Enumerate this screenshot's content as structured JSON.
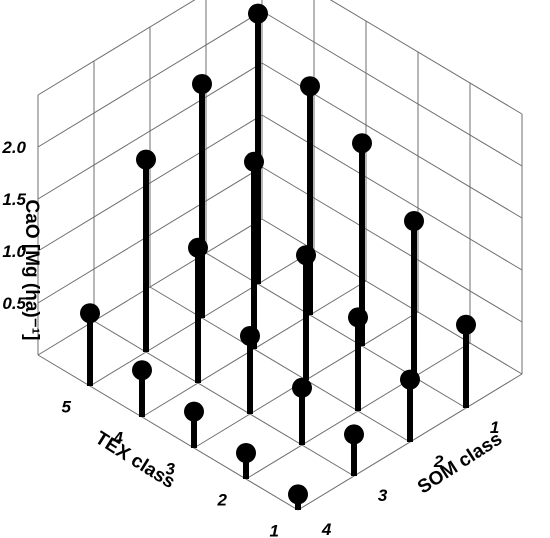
{
  "chart_data": {
    "type": "3d-stem",
    "zlabel": "CaO [Mg (ha)⁻¹]",
    "xlabel": "TEX class",
    "ylabel": "SOM class",
    "zlim": [
      0,
      2.5
    ],
    "z_ticks": [
      "0.5",
      "1.0",
      "1.5",
      "2.0"
    ],
    "x_ticks": [
      "1",
      "2",
      "3",
      "4",
      "5"
    ],
    "y_ticks": [
      "1",
      "2",
      "3",
      "4"
    ],
    "grid": true,
    "points": [
      {
        "tex": 5,
        "som": 4,
        "value": 0.7
      },
      {
        "tex": 5,
        "som": 3,
        "value": 1.85
      },
      {
        "tex": 5,
        "som": 2,
        "value": 2.25
      },
      {
        "tex": 5,
        "som": 1,
        "value": 2.6
      },
      {
        "tex": 4,
        "som": 4,
        "value": 0.45
      },
      {
        "tex": 4,
        "som": 3,
        "value": 1.3
      },
      {
        "tex": 4,
        "som": 2,
        "value": 1.8
      },
      {
        "tex": 4,
        "som": 1,
        "value": 2.2
      },
      {
        "tex": 3,
        "som": 4,
        "value": 0.35
      },
      {
        "tex": 3,
        "som": 3,
        "value": 0.75
      },
      {
        "tex": 3,
        "som": 2,
        "value": 1.2
      },
      {
        "tex": 3,
        "som": 1,
        "value": 1.95
      },
      {
        "tex": 2,
        "som": 4,
        "value": 0.25
      },
      {
        "tex": 2,
        "som": 3,
        "value": 0.55
      },
      {
        "tex": 2,
        "som": 2,
        "value": 0.9
      },
      {
        "tex": 2,
        "som": 1,
        "value": 1.5
      },
      {
        "tex": 1,
        "som": 4,
        "value": 0.15
      },
      {
        "tex": 1,
        "som": 3,
        "value": 0.4
      },
      {
        "tex": 1,
        "som": 2,
        "value": 0.6
      },
      {
        "tex": 1,
        "som": 1,
        "value": 0.8
      }
    ]
  }
}
